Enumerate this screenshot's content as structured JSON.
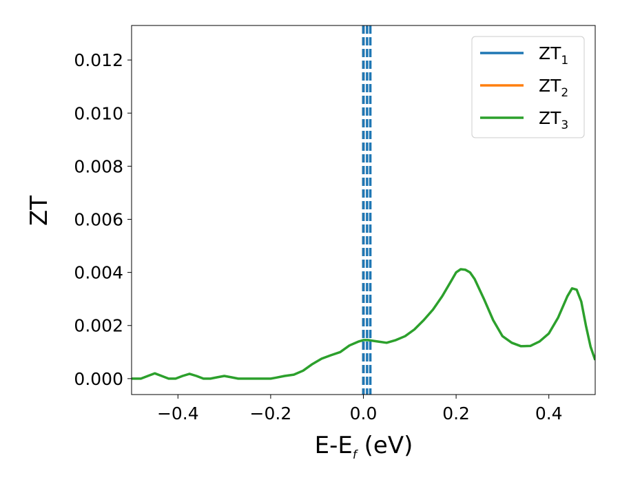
{
  "chart_data": {
    "type": "line",
    "xlabel_main": "E-E",
    "xlabel_sub": "f",
    "xlabel_tail": " (eV)",
    "ylabel": "ZT",
    "xlim": [
      -0.5,
      0.5
    ],
    "ylim": [
      -0.0006,
      0.0133
    ],
    "xticks": [
      -0.4,
      -0.2,
      0.0,
      0.2,
      0.4
    ],
    "xtick_labels": [
      "−0.4",
      "−0.2",
      "0.0",
      "0.2",
      "0.4"
    ],
    "yticks": [
      0.0,
      0.002,
      0.004,
      0.006,
      0.008,
      0.01,
      0.012
    ],
    "ytick_labels": [
      "0.000",
      "0.002",
      "0.004",
      "0.006",
      "0.008",
      "0.010",
      "0.012"
    ],
    "legend_position": "top-right",
    "series": [
      {
        "name": "ZT",
        "sub": "1",
        "color": "#1f77b4",
        "x": [],
        "y": []
      },
      {
        "name": "ZT",
        "sub": "2",
        "color": "#ff7f0e",
        "x": [],
        "y": []
      },
      {
        "name": "ZT",
        "sub": "3",
        "color": "#2ca02c",
        "x": [
          -0.5,
          -0.48,
          -0.465,
          -0.45,
          -0.435,
          -0.42,
          -0.405,
          -0.39,
          -0.375,
          -0.36,
          -0.345,
          -0.33,
          -0.315,
          -0.3,
          -0.285,
          -0.27,
          -0.255,
          -0.24,
          -0.2,
          -0.19,
          -0.17,
          -0.15,
          -0.13,
          -0.11,
          -0.09,
          -0.07,
          -0.05,
          -0.03,
          -0.01,
          0.0,
          0.01,
          0.03,
          0.05,
          0.07,
          0.09,
          0.11,
          0.13,
          0.15,
          0.17,
          0.19,
          0.2,
          0.21,
          0.22,
          0.23,
          0.24,
          0.26,
          0.28,
          0.3,
          0.32,
          0.34,
          0.36,
          0.38,
          0.4,
          0.42,
          0.44,
          0.45,
          0.46,
          0.47,
          0.48,
          0.49,
          0.5
        ],
        "y": [
          0.0,
          0.0,
          0.0001,
          0.0002,
          0.0001,
          0.0,
          0.0,
          0.0001,
          0.00018,
          0.0001,
          0.0,
          0.0,
          5e-05,
          0.0001,
          5e-05,
          0.0,
          0.0,
          0.0,
          0.0,
          3e-05,
          0.0001,
          0.00015,
          0.0003,
          0.00055,
          0.00075,
          0.00088,
          0.001,
          0.00125,
          0.0014,
          0.00145,
          0.00145,
          0.0014,
          0.00135,
          0.00145,
          0.0016,
          0.00185,
          0.0022,
          0.0026,
          0.0031,
          0.0037,
          0.004,
          0.00412,
          0.0041,
          0.004,
          0.00375,
          0.003,
          0.0022,
          0.0016,
          0.00135,
          0.00122,
          0.00123,
          0.0014,
          0.0017,
          0.0023,
          0.0031,
          0.0034,
          0.00335,
          0.0029,
          0.002,
          0.0012,
          0.0007
        ]
      }
    ],
    "vlines": [
      {
        "x": 0.0,
        "color": "#000000",
        "style": "dashed"
      },
      {
        "x": 0.0,
        "color": "#1f77b4",
        "style": "dashed"
      },
      {
        "x": 0.008,
        "color": "#1f77b4",
        "style": "dashed"
      },
      {
        "x": 0.015,
        "color": "#1f77b4",
        "style": "dashed"
      }
    ]
  }
}
